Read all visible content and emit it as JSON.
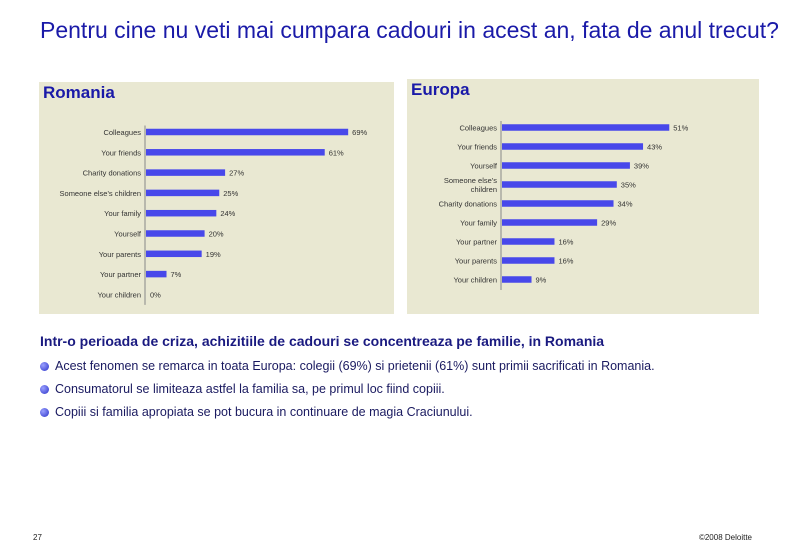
{
  "title": "Pentru cine nu veti mai cumpara cadouri in acest an, fata de anul trecut?",
  "chart_data": [
    {
      "type": "bar",
      "title": "Romania",
      "orientation": "horizontal",
      "categories": [
        "Colleagues",
        "Your friends",
        "Charity donations",
        "Someone else's children",
        "Your family",
        "Yourself",
        "Your parents",
        "Your partner",
        "Your children"
      ],
      "values": [
        69,
        61,
        27,
        25,
        24,
        20,
        19,
        7,
        0
      ],
      "value_labels": [
        "69%",
        "61%",
        "27%",
        "25%",
        "24%",
        "20%",
        "19%",
        "7%",
        "0%"
      ],
      "color": "#4848ea",
      "xlim": [
        0,
        100
      ]
    },
    {
      "type": "bar",
      "title": "Europa",
      "orientation": "horizontal",
      "categories": [
        "Colleagues",
        "Your friends",
        "Yourself",
        "Someone else's children",
        "Charity donations",
        "Your family",
        "Your partner",
        "Your parents",
        "Your children"
      ],
      "values": [
        51,
        43,
        39,
        35,
        34,
        29,
        16,
        16,
        9
      ],
      "value_labels": [
        "51%",
        "43%",
        "39%",
        "35%",
        "34%",
        "29%",
        "16%",
        "16%",
        "9%"
      ],
      "color": "#4848ea",
      "xlim": [
        0,
        100
      ]
    }
  ],
  "heading": "Intr-o perioada de criza, achizitiile de cadouri se concentreaza pe familie, in Romania",
  "bullets": [
    "Acest fenomen se remarca in toata Europa: colegii (69%) si prietenii (61%) sunt primii sacrificati in Romania.",
    "Consumatorul se limiteaza astfel la familia sa, pe primul loc fiind copiii.",
    "Copiii si familia apropiata se pot bucura in continuare de magia Craciunului."
  ],
  "footer": {
    "page_number": "27",
    "copyright": "©2008 Deloitte"
  }
}
